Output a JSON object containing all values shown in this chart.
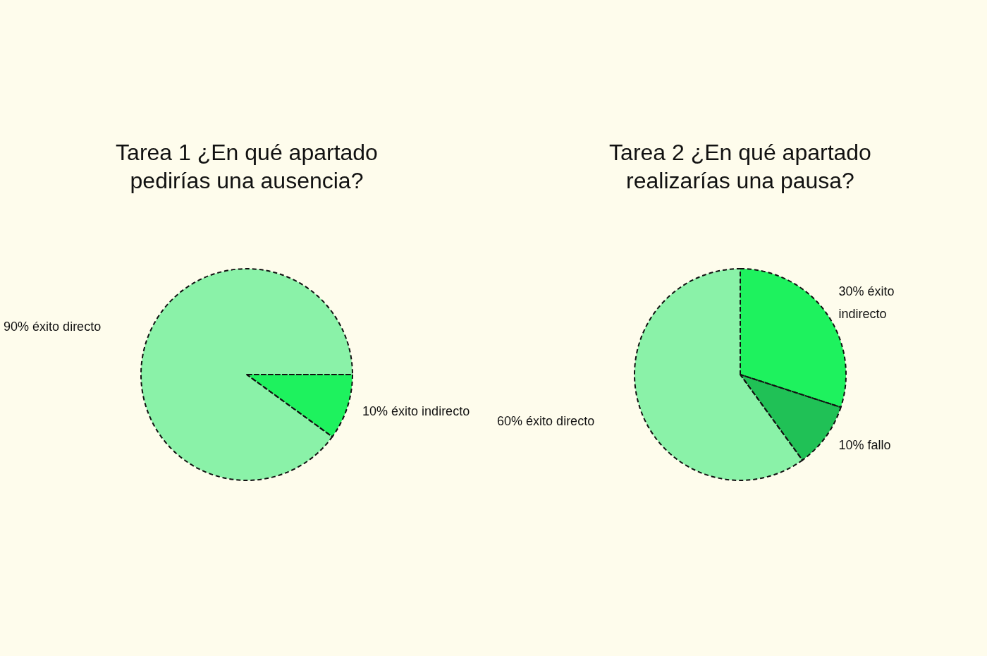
{
  "chart_data": [
    {
      "type": "pie",
      "title": "Tarea 1 ¿En qué apartado pedirías una ausencia?",
      "categories": [
        "10% éxito indirecto",
        "90% éxito directo"
      ],
      "values": [
        10,
        90
      ],
      "colors": [
        "#1ef25e",
        "#8af2a8"
      ],
      "legend": false
    },
    {
      "type": "pie",
      "title": "Tarea 2 ¿En qué apartado realizarías una pausa?",
      "categories": [
        "30% éxito indirecto",
        "10% fallo",
        "60% éxito directo"
      ],
      "values": [
        30,
        10,
        60
      ],
      "colors": [
        "#1ef25e",
        "#20c156",
        "#8af2a8"
      ],
      "legend": false
    }
  ]
}
